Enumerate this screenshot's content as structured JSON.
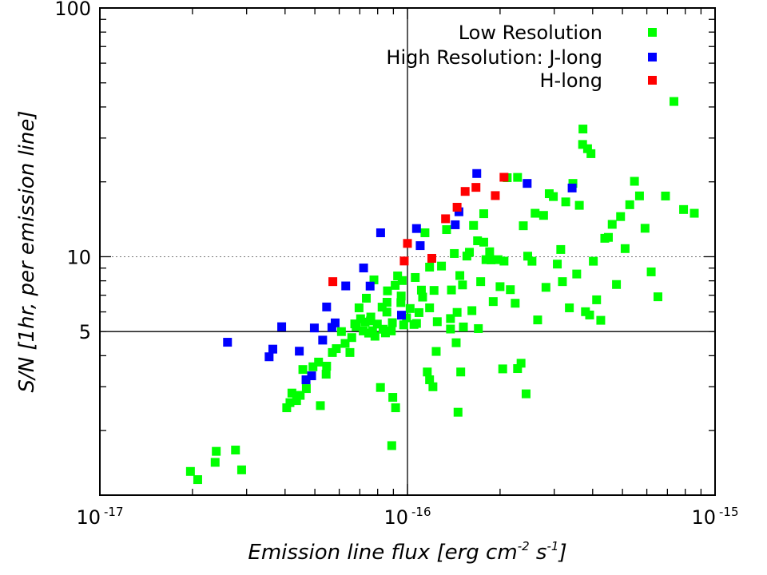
{
  "chart_data": {
    "type": "scatter",
    "x_scale": "log",
    "y_scale": "log",
    "xlim": [
      1e-17,
      1e-15
    ],
    "ylim": [
      1.1,
      100
    ],
    "xlabel": {
      "prefix": "Emission line flux [erg cm",
      "exp1": "-2",
      "mid": " s",
      "exp2": "-1",
      "suffix": "]"
    },
    "ylabel": "S/N [1hr, per emission line]",
    "x_tick_labels": [
      {
        "value": 1e-17,
        "base": "10",
        "exp": "-17"
      },
      {
        "value": 1e-16,
        "base": "10",
        "exp": "-16"
      },
      {
        "value": 1e-15,
        "base": "10",
        "exp": "-15"
      }
    ],
    "y_tick_labels": [
      {
        "value": 100,
        "text": "100"
      },
      {
        "value": 10,
        "text": "10"
      },
      {
        "value": 5,
        "text": "5"
      }
    ],
    "reference_lines": {
      "x": 1e-16,
      "y_solid": 5,
      "y_dotted": 10
    },
    "grid": false,
    "legend_placement": "top-right",
    "legend_title": "Low Resolution",
    "series": [
      {
        "name": "Low Resolution",
        "color": "#00ff00",
        "points": [
          [
            1.97e-17,
            1.37
          ],
          [
            2.08e-17,
            1.27
          ],
          [
            2.37e-17,
            1.49
          ],
          [
            2.39e-17,
            1.65
          ],
          [
            2.76e-17,
            1.67
          ],
          [
            2.89e-17,
            1.39
          ],
          [
            4.05e-17,
            2.47
          ],
          [
            4.15e-17,
            2.59
          ],
          [
            4.21e-17,
            2.83
          ],
          [
            4.36e-17,
            2.64
          ],
          [
            4.48e-17,
            2.77
          ],
          [
            4.69e-17,
            2.95
          ],
          [
            4.57e-17,
            3.52
          ],
          [
            4.93e-17,
            3.61
          ],
          [
            5.14e-17,
            3.77
          ],
          [
            5.21e-17,
            2.52
          ],
          [
            5.44e-17,
            3.37
          ],
          [
            5.46e-17,
            3.63
          ],
          [
            5.7e-17,
            4.12
          ],
          [
            5.87e-17,
            4.27
          ],
          [
            6.1e-17,
            5.0
          ],
          [
            6.27e-17,
            4.48
          ],
          [
            6.5e-17,
            4.12
          ],
          [
            6.59e-17,
            4.73
          ],
          [
            6.74e-17,
            5.37
          ],
          [
            6.81e-17,
            5.24
          ],
          [
            6.96e-17,
            6.23
          ],
          [
            7.04e-17,
            5.63
          ],
          [
            7.18e-17,
            5.03
          ],
          [
            7.28e-17,
            5.46
          ],
          [
            7.35e-17,
            6.81
          ],
          [
            7.48e-17,
            4.93
          ],
          [
            7.58e-17,
            5.52
          ],
          [
            7.6e-17,
            5.72
          ],
          [
            7.7e-17,
            5.04
          ],
          [
            7.78e-17,
            8.07
          ],
          [
            7.84e-17,
            4.79
          ],
          [
            7.98e-17,
            5.36
          ],
          [
            8.17e-17,
            2.98
          ],
          [
            8.27e-17,
            6.27
          ],
          [
            8.33e-17,
            5.11
          ],
          [
            8.48e-17,
            4.94
          ],
          [
            8.57e-17,
            5.99
          ],
          [
            8.58e-17,
            6.56
          ],
          [
            8.61e-17,
            7.29
          ],
          [
            8.86e-17,
            5.03
          ],
          [
            8.89e-17,
            1.74
          ],
          [
            8.93e-17,
            5.43
          ],
          [
            8.96e-17,
            2.72
          ],
          [
            9.12e-17,
            7.67
          ],
          [
            9.15e-17,
            2.47
          ],
          [
            9.29e-17,
            8.37
          ],
          [
            9.52e-17,
            6.54
          ],
          [
            9.54e-17,
            6.95
          ],
          [
            9.61e-17,
            8.02
          ],
          [
            9.72e-17,
            5.32
          ],
          [
            9.93e-17,
            5.68
          ],
          [
            1.02e-16,
            6.19
          ],
          [
            1.05e-16,
            5.34
          ],
          [
            1.06e-16,
            8.25
          ],
          [
            1.07e-16,
            5.39
          ],
          [
            1.09e-16,
            5.96
          ],
          [
            1.11e-16,
            7.34
          ],
          [
            1.12e-16,
            6.88
          ],
          [
            1.14e-16,
            12.48
          ],
          [
            1.16e-16,
            3.44
          ],
          [
            1.18e-16,
            3.2
          ],
          [
            1.18e-16,
            9.08
          ],
          [
            1.18e-16,
            6.23
          ],
          [
            1.21e-16,
            3.0
          ],
          [
            1.22e-16,
            7.32
          ],
          [
            1.24e-16,
            4.16
          ],
          [
            1.25e-16,
            5.48
          ],
          [
            1.29e-16,
            9.17
          ],
          [
            1.34e-16,
            12.85
          ],
          [
            1.38e-16,
            5.64
          ],
          [
            1.38e-16,
            5.12
          ],
          [
            1.39e-16,
            7.35
          ],
          [
            1.42e-16,
            10.3
          ],
          [
            1.44e-16,
            4.51
          ],
          [
            1.45e-16,
            5.97
          ],
          [
            1.46e-16,
            2.37
          ],
          [
            1.48e-16,
            8.4
          ],
          [
            1.49e-16,
            3.44
          ],
          [
            1.51e-16,
            7.7
          ],
          [
            1.52e-16,
            5.22
          ],
          [
            1.56e-16,
            10.06
          ],
          [
            1.59e-16,
            10.42
          ],
          [
            1.62e-16,
            6.07
          ],
          [
            1.64e-16,
            13.36
          ],
          [
            1.69e-16,
            11.59
          ],
          [
            1.7e-16,
            5.14
          ],
          [
            1.73e-16,
            7.94
          ],
          [
            1.77e-16,
            14.89
          ],
          [
            1.77e-16,
            11.44
          ],
          [
            1.8e-16,
            9.73
          ],
          [
            1.85e-16,
            10.47
          ],
          [
            1.87e-16,
            9.71
          ],
          [
            1.9e-16,
            6.6
          ],
          [
            1.97e-16,
            9.73
          ],
          [
            2e-16,
            7.58
          ],
          [
            2.04e-16,
            3.54
          ],
          [
            2.06e-16,
            9.6
          ],
          [
            2.11e-16,
            20.78
          ],
          [
            2.16e-16,
            7.37
          ],
          [
            2.24e-16,
            6.5
          ],
          [
            2.28e-16,
            3.55
          ],
          [
            2.28e-16,
            20.84
          ],
          [
            2.34e-16,
            3.73
          ],
          [
            2.38e-16,
            13.32
          ],
          [
            2.43e-16,
            2.81
          ],
          [
            2.46e-16,
            10.05
          ],
          [
            2.54e-16,
            9.59
          ],
          [
            2.6e-16,
            14.95
          ],
          [
            2.65e-16,
            5.57
          ],
          [
            2.77e-16,
            14.66
          ],
          [
            2.82e-16,
            7.53
          ],
          [
            2.89e-16,
            17.92
          ],
          [
            2.98e-16,
            17.45
          ],
          [
            3.07e-16,
            9.34
          ],
          [
            3.15e-16,
            10.69
          ],
          [
            3.19e-16,
            7.94
          ],
          [
            3.27e-16,
            16.61
          ],
          [
            3.36e-16,
            6.23
          ],
          [
            3.45e-16,
            19.71
          ],
          [
            3.55e-16,
            8.52
          ],
          [
            3.62e-16,
            16.09
          ],
          [
            3.71e-16,
            28.27
          ],
          [
            3.79e-16,
            6.01
          ],
          [
            3.91e-16,
            5.83
          ],
          [
            4.02e-16,
            9.59
          ],
          [
            4.12e-16,
            6.71
          ],
          [
            4.25e-16,
            5.55
          ],
          [
            4.38e-16,
            11.86
          ],
          [
            4.5e-16,
            11.96
          ],
          [
            4.63e-16,
            13.49
          ],
          [
            4.78e-16,
            7.73
          ],
          [
            4.93e-16,
            14.5
          ],
          [
            5.1e-16,
            10.78
          ],
          [
            5.28e-16,
            16.18
          ],
          [
            5.47e-16,
            20.1
          ],
          [
            5.68e-16,
            17.56
          ],
          [
            5.92e-16,
            13.01
          ],
          [
            6.2e-16,
            8.69
          ],
          [
            6.52e-16,
            6.9
          ],
          [
            6.9e-16,
            17.54
          ],
          [
            7.35e-16,
            42.09
          ],
          [
            7.9e-16,
            15.48
          ],
          [
            8.56e-16,
            14.95
          ],
          [
            3.72e-16,
            32.61
          ],
          [
            3.85e-16,
            27.18
          ],
          [
            3.95e-16,
            25.96
          ]
        ]
      },
      {
        "name": "J-long",
        "legend_label": "High Resolution:  J-long",
        "color": "#0000ff",
        "points": [
          [
            2.6e-17,
            4.53
          ],
          [
            3.55e-17,
            3.96
          ],
          [
            3.65e-17,
            4.25
          ],
          [
            3.9e-17,
            5.23
          ],
          [
            4.45e-17,
            4.17
          ],
          [
            4.68e-17,
            3.2
          ],
          [
            4.88e-17,
            3.32
          ],
          [
            4.98e-17,
            5.17
          ],
          [
            5.3e-17,
            4.62
          ],
          [
            5.46e-17,
            6.28
          ],
          [
            5.68e-17,
            5.2
          ],
          [
            5.82e-17,
            5.42
          ],
          [
            6.3e-17,
            7.63
          ],
          [
            7.2e-17,
            9.01
          ],
          [
            7.56e-17,
            7.62
          ],
          [
            8.18e-17,
            12.48
          ],
          [
            9.56e-17,
            5.82
          ],
          [
            1.07e-16,
            12.98
          ],
          [
            1.1e-16,
            11.08
          ],
          [
            1.43e-16,
            13.44
          ],
          [
            1.47e-16,
            15.16
          ],
          [
            1.68e-16,
            21.6
          ],
          [
            2.45e-16,
            19.71
          ],
          [
            3.43e-16,
            18.89
          ]
        ]
      },
      {
        "name": "H-long",
        "color": "#ff0000",
        "points": [
          [
            5.72e-17,
            7.94
          ],
          [
            9.76e-17,
            9.61
          ],
          [
            1e-16,
            11.31
          ],
          [
            1.2e-16,
            9.85
          ],
          [
            1.33e-16,
            14.21
          ],
          [
            1.45e-16,
            15.81
          ],
          [
            1.54e-16,
            18.3
          ],
          [
            1.67e-16,
            19.0
          ],
          [
            1.93e-16,
            17.61
          ],
          [
            2.06e-16,
            20.86
          ]
        ]
      }
    ]
  }
}
